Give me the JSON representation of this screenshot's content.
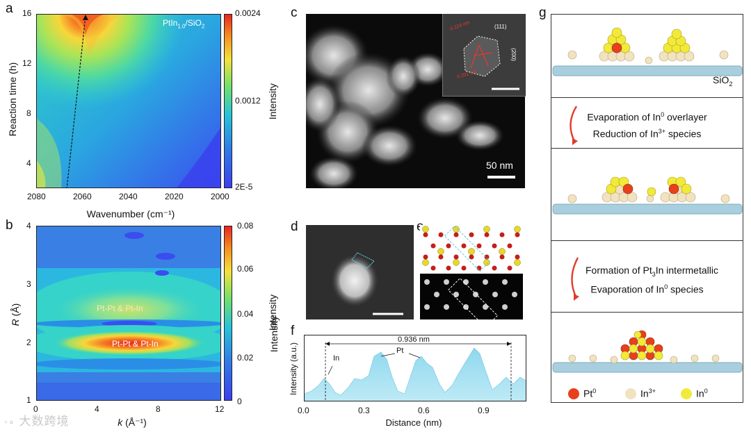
{
  "panel_a": {
    "label": "a",
    "annotation": "PtIn",
    "annotation_sub": "1.0",
    "annotation_tail": "/SiO",
    "annotation_sub2": "2",
    "ylabel": "Reaction time (h)",
    "xlabel": "Wavenumber (cm⁻¹)",
    "yticks": [
      "16",
      "12",
      "8",
      "4"
    ],
    "xticks": [
      "2080",
      "2060",
      "2040",
      "2020",
      "2000"
    ],
    "colorbar_ticks": [
      "0.0024",
      "0.0012",
      "2E-5"
    ],
    "colorbar_label": "Intensity"
  },
  "panel_b": {
    "label": "b",
    "ylabel_italic": "R",
    "ylabel_rest": " (Å)",
    "xlabel_italic": "k",
    "xlabel_rest": " (Å⁻¹)",
    "yticks": [
      "4",
      "3",
      "2",
      "1"
    ],
    "xticks": [
      "0",
      "4",
      "8",
      "12"
    ],
    "colorbar_ticks": [
      "0.08",
      "0.06",
      "0.04",
      "0.02",
      "0"
    ],
    "colorbar_label": "Intensity",
    "annotation_upper": "Pt-Pt & Pt-In",
    "annotation_lower": "Pt-Pt & Pt-In"
  },
  "panel_c": {
    "label": "c",
    "scalebar": "50 nm",
    "inset_d1": "0.224 nm",
    "inset_d2": "0.201 nm",
    "inset_plane1": "(111)",
    "inset_plane2": "(200)"
  },
  "panel_d": {
    "label": "d"
  },
  "panel_e": {
    "label": "e"
  },
  "panel_f": {
    "label": "f",
    "ylabel": "Intensity (a.u.)",
    "xlabel": "Distance (nm)",
    "xticks": [
      "0.0",
      "0.3",
      "0.6",
      "0.9"
    ],
    "distance": "0.936 nm",
    "pt_label": "Pt",
    "in_label": "In",
    "side_label": "Intensity"
  },
  "panel_g": {
    "label": "g",
    "sio2": "SiO",
    "sio2_sub": "2",
    "step1_line1": "Evaporation  of In",
    "step1_line1_sup": "0",
    "step1_line1_tail": " overlayer",
    "step1_line2": "Reduction  of In",
    "step1_line2_sup": "3+",
    "step1_line2_tail": " species",
    "step2_line1": "Formation  of Pt",
    "step2_line1_sub": "3",
    "step2_line1_tail": "In intermetallic",
    "step2_line2": "Evaporation  of In",
    "step2_line2_sup": "0",
    "step2_line2_tail": " species",
    "legend": [
      {
        "name": "Pt",
        "sup": "0",
        "color": "#e8401c"
      },
      {
        "name": "In",
        "sup": "3+",
        "color": "#f1e2c0"
      },
      {
        "name": "In",
        "sup": "0",
        "color": "#f2ea3a"
      }
    ]
  },
  "watermark": "大数跨境",
  "colors": {
    "hot": "#e8251f",
    "cold": "#3b3ff0",
    "pt": "#e8401c",
    "in3": "#f1e2c0",
    "in0": "#f2ea3a",
    "support": "#9ec4d6"
  }
}
